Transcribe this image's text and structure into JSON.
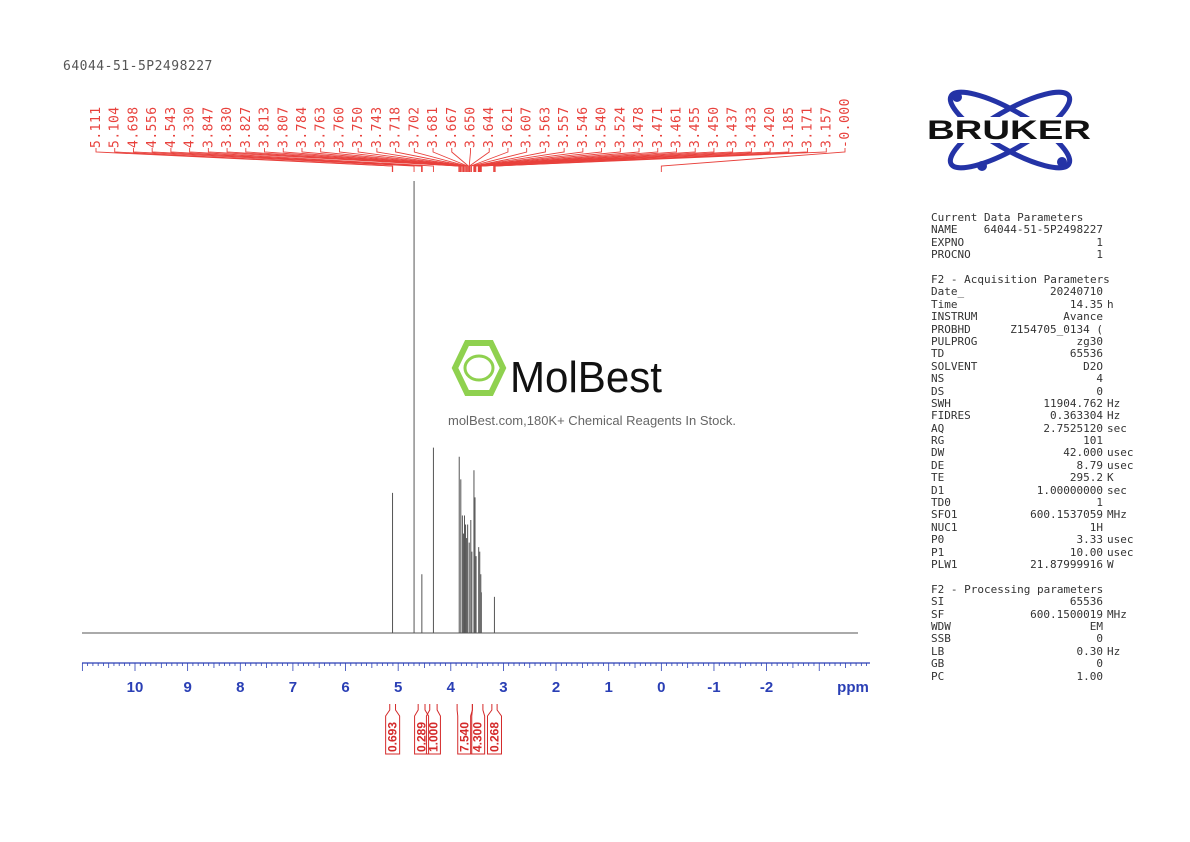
{
  "sample_title": "64044-51-5P2498227",
  "chart_data": {
    "type": "line",
    "title": "64044-51-5P2498227",
    "xlabel": "ppm",
    "xlim": [
      11.0,
      -3.9
    ],
    "x_reversed": true,
    "x_ticks": [
      10,
      9,
      8,
      7,
      6,
      5,
      4,
      3,
      2,
      1,
      0,
      -1,
      -2
    ],
    "x_tick_labels": [
      "10",
      "9",
      "8",
      "7",
      "6",
      "5",
      "4",
      "3",
      "2",
      "1",
      "0",
      "-1",
      "-2"
    ],
    "axis_unit_label": "ppm",
    "peak_labels": [
      "5.111",
      "5.104",
      "4.698",
      "4.556",
      "4.543",
      "4.330",
      "3.847",
      "3.830",
      "3.827",
      "3.813",
      "3.807",
      "3.784",
      "3.763",
      "3.760",
      "3.750",
      "3.743",
      "3.718",
      "3.702",
      "3.681",
      "3.667",
      "3.650",
      "3.644",
      "3.621",
      "3.607",
      "3.563",
      "3.557",
      "3.546",
      "3.540",
      "3.524",
      "3.478",
      "3.471",
      "3.461",
      "3.455",
      "3.450",
      "3.437",
      "3.433",
      "3.420",
      "3.185",
      "3.171",
      "3.157",
      "-0.000"
    ],
    "peaks": [
      {
        "ppm": 5.107,
        "height": 0.31
      },
      {
        "ppm": 4.698,
        "height": 1.0
      },
      {
        "ppm": 4.55,
        "height": 0.13
      },
      {
        "ppm": 4.33,
        "height": 0.41
      },
      {
        "ppm": 3.84,
        "height": 0.39
      },
      {
        "ppm": 3.81,
        "height": 0.34
      },
      {
        "ppm": 3.78,
        "height": 0.26
      },
      {
        "ppm": 3.76,
        "height": 0.22
      },
      {
        "ppm": 3.74,
        "height": 0.26
      },
      {
        "ppm": 3.72,
        "height": 0.24
      },
      {
        "ppm": 3.7,
        "height": 0.21
      },
      {
        "ppm": 3.68,
        "height": 0.24
      },
      {
        "ppm": 3.65,
        "height": 0.2
      },
      {
        "ppm": 3.62,
        "height": 0.25
      },
      {
        "ppm": 3.6,
        "height": 0.18
      },
      {
        "ppm": 3.56,
        "height": 0.36
      },
      {
        "ppm": 3.54,
        "height": 0.3
      },
      {
        "ppm": 3.52,
        "height": 0.17
      },
      {
        "ppm": 3.47,
        "height": 0.19
      },
      {
        "ppm": 3.45,
        "height": 0.18
      },
      {
        "ppm": 3.43,
        "height": 0.13
      },
      {
        "ppm": 3.42,
        "height": 0.09
      },
      {
        "ppm": 3.171,
        "height": 0.08
      },
      {
        "ppm": 0.0,
        "height": 0.0
      }
    ],
    "integrals": [
      {
        "range": [
          5.16,
          5.05
        ],
        "value": "0.693"
      },
      {
        "range": [
          4.62,
          4.49
        ],
        "value": "0.289"
      },
      {
        "range": [
          4.4,
          4.26
        ],
        "value": "1.000"
      },
      {
        "range": [
          3.88,
          3.59
        ],
        "value": "7.540"
      },
      {
        "range": [
          3.59,
          3.39
        ],
        "value": "4.300"
      },
      {
        "range": [
          3.22,
          3.12
        ],
        "value": "0.268"
      }
    ],
    "colors": {
      "spectrum": "#555555",
      "peak_labels": "#e8413c",
      "axis": "#2a3fb5",
      "integrals": "#d42a2a"
    }
  },
  "parameters": {
    "current": {
      "title": "Current Data Parameters",
      "rows": [
        {
          "k": "NAME",
          "v": "64044-51-5P2498227",
          "u": ""
        },
        {
          "k": "EXPNO",
          "v": "1",
          "u": ""
        },
        {
          "k": "PROCNO",
          "v": "1",
          "u": ""
        }
      ]
    },
    "acq": {
      "title": "F2 - Acquisition Parameters",
      "rows": [
        {
          "k": "Date_",
          "v": "20240710",
          "u": ""
        },
        {
          "k": "Time",
          "v": "14.35",
          "u": "h"
        },
        {
          "k": "INSTRUM",
          "v": "Avance",
          "u": ""
        },
        {
          "k": "PROBHD",
          "v": "Z154705_0134 (",
          "u": ""
        },
        {
          "k": "PULPROG",
          "v": "zg30",
          "u": ""
        },
        {
          "k": "TD",
          "v": "65536",
          "u": ""
        },
        {
          "k": "SOLVENT",
          "v": "D2O",
          "u": ""
        },
        {
          "k": "NS",
          "v": "4",
          "u": ""
        },
        {
          "k": "DS",
          "v": "0",
          "u": ""
        },
        {
          "k": "SWH",
          "v": "11904.762",
          "u": "Hz"
        },
        {
          "k": "FIDRES",
          "v": "0.363304",
          "u": "Hz"
        },
        {
          "k": "AQ",
          "v": "2.7525120",
          "u": "sec"
        },
        {
          "k": "RG",
          "v": "101",
          "u": ""
        },
        {
          "k": "DW",
          "v": "42.000",
          "u": "usec"
        },
        {
          "k": "DE",
          "v": "8.79",
          "u": "usec"
        },
        {
          "k": "TE",
          "v": "295.2",
          "u": "K"
        },
        {
          "k": "D1",
          "v": "1.00000000",
          "u": "sec"
        },
        {
          "k": "TD0",
          "v": "1",
          "u": ""
        },
        {
          "k": "SFO1",
          "v": "600.1537059",
          "u": "MHz"
        },
        {
          "k": "NUC1",
          "v": "1H",
          "u": ""
        },
        {
          "k": "P0",
          "v": "3.33",
          "u": "usec"
        },
        {
          "k": "P1",
          "v": "10.00",
          "u": "usec"
        },
        {
          "k": "PLW1",
          "v": "21.87999916",
          "u": "W"
        }
      ]
    },
    "proc": {
      "title": "F2 - Processing parameters",
      "rows": [
        {
          "k": "SI",
          "v": "65536",
          "u": ""
        },
        {
          "k": "SF",
          "v": "600.1500019",
          "u": "MHz"
        },
        {
          "k": "WDW",
          "v": "EM",
          "u": ""
        },
        {
          "k": "SSB",
          "v": "0",
          "u": ""
        },
        {
          "k": "LB",
          "v": "0.30",
          "u": "Hz"
        },
        {
          "k": "GB",
          "v": "0",
          "u": ""
        },
        {
          "k": "PC",
          "v": "1.00",
          "u": ""
        }
      ]
    }
  },
  "logos": {
    "bruker": "BRUKER",
    "molbest_name": "MolBest",
    "molbest_tagline": "molBest.com,180K+ Chemical Reagents In Stock."
  }
}
